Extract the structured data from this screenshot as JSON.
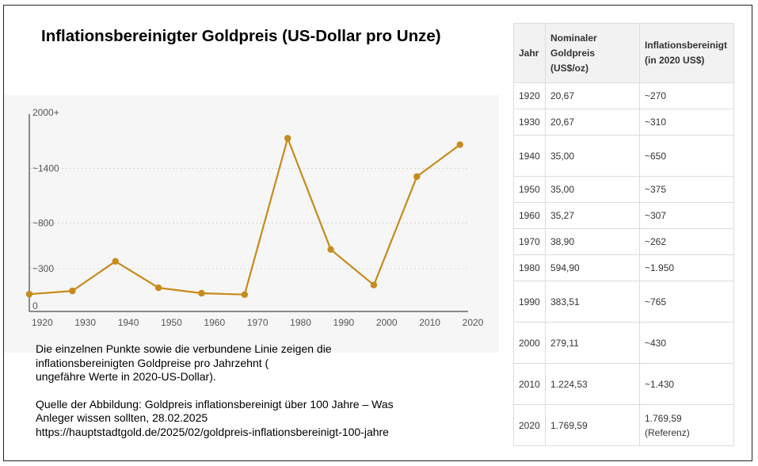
{
  "title": "Inflationsbereinigter Goldpreis (US-Dollar pro Unze)",
  "chart_data": {
    "type": "line",
    "x": [
      1917,
      1927,
      1937,
      1947,
      1957,
      1967,
      1977,
      1987,
      1997,
      2007,
      2017
    ],
    "values": [
      190,
      225,
      550,
      260,
      200,
      185,
      1900,
      680,
      290,
      1480,
      1830
    ],
    "color": "#c88a1a",
    "x_ticks": [
      "1920",
      "1930",
      "1940",
      "1950",
      "1960",
      "1970",
      "1980",
      "1990",
      "2000",
      "2010",
      "2020"
    ],
    "x_tick_values": [
      1920,
      1930,
      1940,
      1950,
      1960,
      1970,
      1980,
      1990,
      2000,
      2010,
      2020
    ],
    "y_ticks": [
      "0",
      "~300",
      "~800",
      "~1400",
      "2000+"
    ],
    "y_tick_values": [
      0,
      470,
      970,
      1570,
      2200
    ],
    "xlim": [
      1917,
      2020
    ],
    "ylim": [
      0,
      2200
    ],
    "grid": true
  },
  "description": {
    "lines": [
      "Die einzelnen Punkte sowie die verbundene Linie zeigen die",
      "inflationsbereinigten Goldpreise pro Jahrzehnt (",
      "ungefähre Werte in 2020-US-Dollar)."
    ],
    "source_lines": [
      "Quelle der Abbildung: Goldpreis inflationsbereinigt über 100 Jahre – Was",
      "Anleger wissen sollten, 28.02.2025",
      "https://hauptstadtgold.de/2025/02/goldpreis-inflationsbereinigt-100-jahre"
    ]
  },
  "table": {
    "headers": {
      "year": "Jahr",
      "nominal": [
        "Nominaler",
        "Goldpreis",
        "(US$/oz)"
      ],
      "adjusted": [
        "Inflationsbereinigt",
        "(in 2020 US$)"
      ]
    },
    "rows": [
      {
        "year": "1920",
        "nominal": "20,67",
        "adjusted": [
          "~270"
        ]
      },
      {
        "year": "1930",
        "nominal": "20,67",
        "adjusted": [
          "~310"
        ]
      },
      {
        "year": "1940",
        "nominal": "35,00",
        "adjusted": [
          "~650"
        ]
      },
      {
        "year": "1950",
        "nominal": "35,00",
        "adjusted": [
          "~375"
        ]
      },
      {
        "year": "1960",
        "nominal": "35,27",
        "adjusted": [
          "~307"
        ]
      },
      {
        "year": "1970",
        "nominal": "38,90",
        "adjusted": [
          "~262"
        ]
      },
      {
        "year": "1980",
        "nominal": "594,90",
        "adjusted": [
          "~1.950"
        ]
      },
      {
        "year": "1990",
        "nominal": "383,51",
        "adjusted": [
          "~765"
        ]
      },
      {
        "year": "2000",
        "nominal": "279,11",
        "adjusted": [
          "~430"
        ]
      },
      {
        "year": "2010",
        "nominal": "1.224,53",
        "adjusted": [
          "~1.430"
        ]
      },
      {
        "year": "2020",
        "nominal": "1.769,59",
        "adjusted": [
          "1.769,59",
          "(Referenz)"
        ]
      }
    ]
  }
}
